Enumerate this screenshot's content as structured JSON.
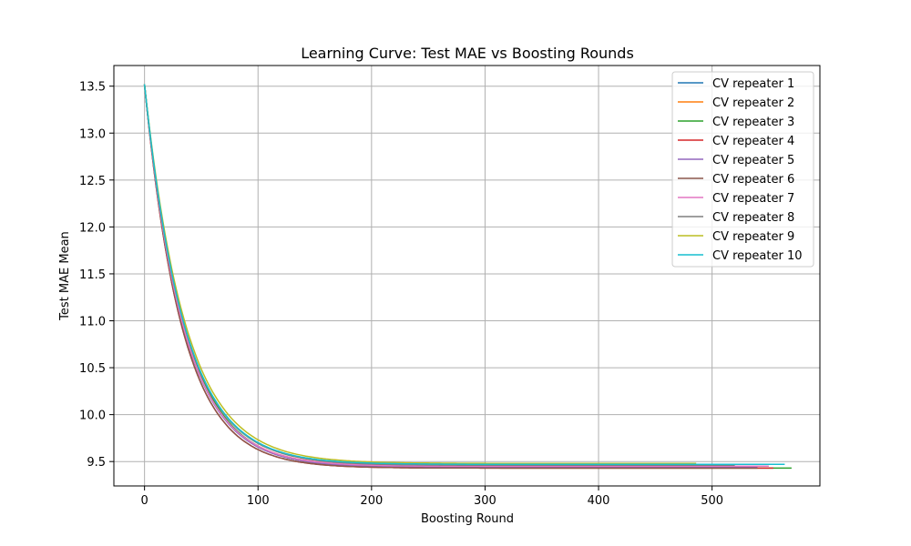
{
  "chart_data": {
    "type": "line",
    "title": "Learning Curve: Test MAE vs Boosting Rounds",
    "xlabel": "Boosting Round",
    "ylabel": "Test MAE Mean",
    "xlim": [
      -27,
      595
    ],
    "ylim": [
      9.24,
      13.72
    ],
    "xticks": [
      0,
      100,
      200,
      300,
      400,
      500
    ],
    "xtick_labels": [
      "0",
      "100",
      "200",
      "300",
      "400",
      "500"
    ],
    "yticks": [
      9.5,
      10.0,
      10.5,
      11.0,
      11.5,
      12.0,
      12.5,
      13.0,
      13.5
    ],
    "ytick_labels": [
      "9.5",
      "10.0",
      "10.5",
      "11.0",
      "11.5",
      "12.0",
      "12.5",
      "13.0",
      "13.5"
    ],
    "grid": true,
    "legend_position": "top-right",
    "series": [
      {
        "name": "CV repeater 1",
        "color": "#1f77b4",
        "start": 13.52,
        "end_value": 9.44,
        "last_round": 540,
        "decay_rounds": 34
      },
      {
        "name": "CV repeater 2",
        "color": "#ff7f0e",
        "start": 13.52,
        "end_value": 9.45,
        "last_round": 545,
        "decay_rounds": 34
      },
      {
        "name": "CV repeater 3",
        "color": "#2ca02c",
        "start": 13.52,
        "end_value": 9.43,
        "last_round": 570,
        "decay_rounds": 35
      },
      {
        "name": "CV repeater 4",
        "color": "#d62728",
        "start": 13.52,
        "end_value": 9.43,
        "last_round": 555,
        "decay_rounds": 33
      },
      {
        "name": "CV repeater 5",
        "color": "#9467bd",
        "start": 13.52,
        "end_value": 9.44,
        "last_round": 540,
        "decay_rounds": 34
      },
      {
        "name": "CV repeater 6",
        "color": "#8c564b",
        "start": 13.52,
        "end_value": 9.43,
        "last_round": 540,
        "decay_rounds": 33
      },
      {
        "name": "CV repeater 7",
        "color": "#e377c2",
        "start": 13.52,
        "end_value": 9.45,
        "last_round": 550,
        "decay_rounds": 34
      },
      {
        "name": "CV repeater 8",
        "color": "#7f7f7f",
        "start": 13.52,
        "end_value": 9.46,
        "last_round": 520,
        "decay_rounds": 35
      },
      {
        "name": "CV repeater 9",
        "color": "#bcbd22",
        "start": 13.52,
        "end_value": 9.48,
        "last_round": 487,
        "decay_rounds": 36
      },
      {
        "name": "CV repeater 10",
        "color": "#17becf",
        "start": 13.52,
        "end_value": 9.47,
        "last_round": 565,
        "decay_rounds": 35
      }
    ]
  }
}
